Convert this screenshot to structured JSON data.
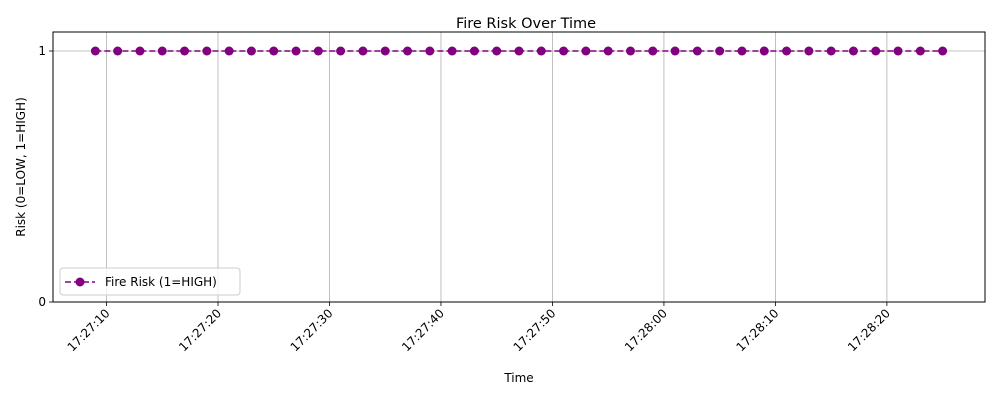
{
  "chart_data": {
    "type": "line",
    "title": "Fire Risk Over Time",
    "xlabel": "Time",
    "ylabel": "Risk (0=LOW, 1=HIGH)",
    "x": [
      "17:27:09",
      "17:27:11",
      "17:27:13",
      "17:27:15",
      "17:27:17",
      "17:27:19",
      "17:27:21",
      "17:27:23",
      "17:27:25",
      "17:27:27",
      "17:27:29",
      "17:27:31",
      "17:27:33",
      "17:27:35",
      "17:27:37",
      "17:27:39",
      "17:27:41",
      "17:27:43",
      "17:27:45",
      "17:27:47",
      "17:27:49",
      "17:27:51",
      "17:27:53",
      "17:27:55",
      "17:27:57",
      "17:27:59",
      "17:28:01",
      "17:28:03",
      "17:28:05",
      "17:28:07",
      "17:28:09",
      "17:28:11",
      "17:28:13",
      "17:28:15",
      "17:28:17",
      "17:28:19",
      "17:28:21",
      "17:28:23",
      "17:28:25"
    ],
    "series": [
      {
        "name": "Fire Risk (1=HIGH)",
        "color": "#800080",
        "line_style": "dashed",
        "marker": "circle",
        "values": [
          1,
          1,
          1,
          1,
          1,
          1,
          1,
          1,
          1,
          1,
          1,
          1,
          1,
          1,
          1,
          1,
          1,
          1,
          1,
          1,
          1,
          1,
          1,
          1,
          1,
          1,
          1,
          1,
          1,
          1,
          1,
          1,
          1,
          1,
          1,
          1,
          1,
          1,
          1
        ]
      }
    ],
    "xticks": [
      "17:27:10",
      "17:27:20",
      "17:27:30",
      "17:27:40",
      "17:27:50",
      "17:28:00",
      "17:28:10",
      "17:28:20"
    ],
    "yticks": [
      "0",
      "1"
    ],
    "ylim": [
      0,
      1
    ],
    "xlim": [
      "17:27:05.2",
      "17:28:28.8"
    ],
    "grid": true,
    "legend_position": "lower-left"
  }
}
